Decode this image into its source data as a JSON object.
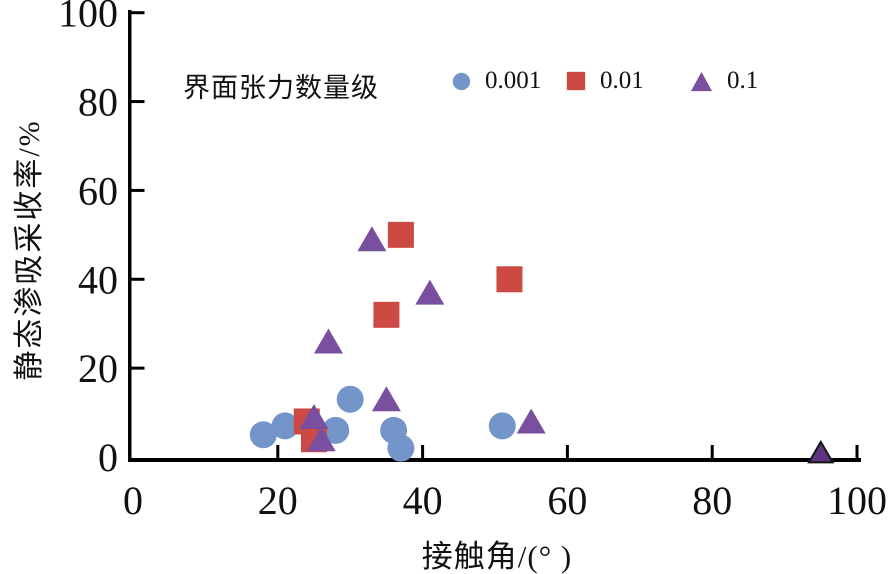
{
  "chart_data": {
    "type": "scatter",
    "title": "",
    "xlabel": "接触角/(°  )",
    "ylabel": "静态渗吸采收率/%",
    "xlim": [
      0,
      100
    ],
    "ylim": [
      0,
      100
    ],
    "xticks": [
      "0",
      "20",
      "40",
      "60",
      "80",
      "100"
    ],
    "yticks": [
      "0",
      "20",
      "40",
      "60",
      "80",
      "100"
    ],
    "grid": false,
    "legend": {
      "title": "界面张力数量级",
      "position": "top-center",
      "entries": [
        "0.001",
        "0.01",
        "0.1"
      ]
    },
    "series": [
      {
        "name": "0.001",
        "marker": "circle",
        "color": "#7495CA",
        "points": [
          [
            18,
            5
          ],
          [
            21,
            7
          ],
          [
            28,
            6
          ],
          [
            30,
            13
          ],
          [
            36,
            6
          ],
          [
            37,
            2
          ],
          [
            51,
            7
          ]
        ]
      },
      {
        "name": "0.01",
        "marker": "square",
        "color": "#CC4944",
        "points": [
          [
            24,
            8
          ],
          [
            25,
            4
          ],
          [
            35,
            32
          ],
          [
            37,
            50
          ],
          [
            52,
            40
          ]
        ]
      },
      {
        "name": "0.1",
        "marker": "triangle",
        "color": "#7B4FA0",
        "points": [
          [
            25,
            9
          ],
          [
            26,
            4
          ],
          [
            27,
            26
          ],
          [
            33,
            49
          ],
          [
            35,
            13
          ],
          [
            41,
            37
          ],
          [
            55,
            8
          ]
        ],
        "extra_point": {
          "xy": [
            95,
            1
          ],
          "fill": "#5E3382",
          "stroke": "#141414",
          "outlined": true
        }
      }
    ],
    "colors": {
      "axis": "#000000",
      "text": "#111111"
    }
  }
}
